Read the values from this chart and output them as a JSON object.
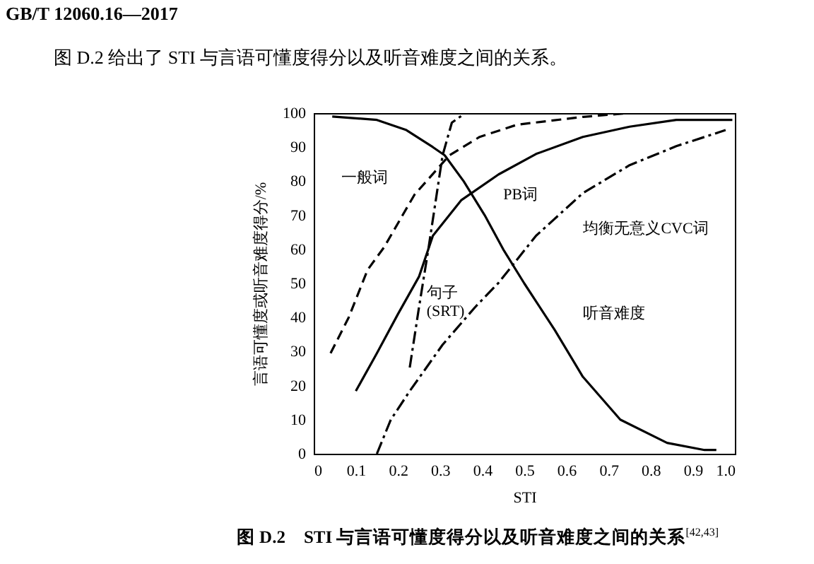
{
  "chart_data": {
    "type": "line",
    "title": "图 D.2　STI 与言语可懂度得分以及听音难度之间的关系$^{[42,43]}$",
    "annotations": [
      "GB/T 12060.16—2017",
      "图 D.2 给出了 STI 与言语可懂度得分以及听音难度之间的关系。"
    ],
    "xlabel": "STI",
    "ylabel": "言语可懂度或听音难度得分/%",
    "xlim": [
      0,
      1
    ],
    "ylim": [
      0,
      100
    ],
    "xticks": [
      0,
      0.1,
      0.2,
      0.3,
      0.4,
      0.5,
      0.6,
      0.7,
      0.8,
      0.9,
      {
        "value": 1,
        "label": "1.0"
      }
    ],
    "yticks": [
      0,
      10,
      20,
      30,
      40,
      50,
      60,
      70,
      80,
      90,
      100
    ],
    "grid": false,
    "series": [
      {
        "name": "一般词",
        "color": "#000000",
        "line_style": "dashed",
        "x": [
          0.04,
          0.083,
          0.128,
          0.167,
          0.239,
          0.322,
          0.394,
          0.483,
          0.64,
          0.75,
          0.85,
          1.0
        ],
        "values": [
          29.5,
          40,
          54,
          60.6,
          76,
          87.6,
          93,
          96.6,
          98.9,
          100,
          100,
          100
        ]
      },
      {
        "name": "PB词",
        "color": "#000000",
        "line_style": "solid",
        "x": [
          0.1,
          0.15,
          0.2,
          0.25,
          0.283,
          0.35,
          0.439,
          0.528,
          0.639,
          0.75,
          0.861,
          0.994
        ],
        "values": [
          18.4,
          29.5,
          41,
          52,
          64,
          74.4,
          82,
          88,
          93,
          96,
          98,
          98
        ]
      },
      {
        "name": "句子 (SRT)",
        "color": "#000000",
        "line_style": "dashdot",
        "x": [
          0.228,
          0.25,
          0.272,
          0.306,
          0.328,
          0.36
        ],
        "values": [
          25.3,
          43,
          59.9,
          87.6,
          97.2,
          100
        ]
      },
      {
        "name": "均衡无意义CVC词",
        "color": "#000000",
        "line_style": "dashdot",
        "x": [
          0.15,
          0.183,
          0.228,
          0.306,
          0.383,
          0.439,
          0.528,
          0.639,
          0.75,
          0.861,
          0.978
        ],
        "values": [
          0,
          10,
          18.4,
          32,
          43,
          50.2,
          64,
          76.5,
          84.7,
          90.3,
          95
        ]
      },
      {
        "name": "听音难度",
        "color": "#000000",
        "line_style": "solid",
        "x": [
          0.044,
          0.15,
          0.22,
          0.283,
          0.311,
          0.356,
          0.406,
          0.45,
          0.5,
          0.572,
          0.639,
          0.728,
          0.839,
          0.928,
          0.956
        ],
        "values": [
          99,
          98,
          95,
          90,
          87.6,
          80,
          70,
          60,
          50,
          36.4,
          22.6,
          10,
          3.2,
          1.1,
          1.1
        ]
      }
    ]
  }
}
